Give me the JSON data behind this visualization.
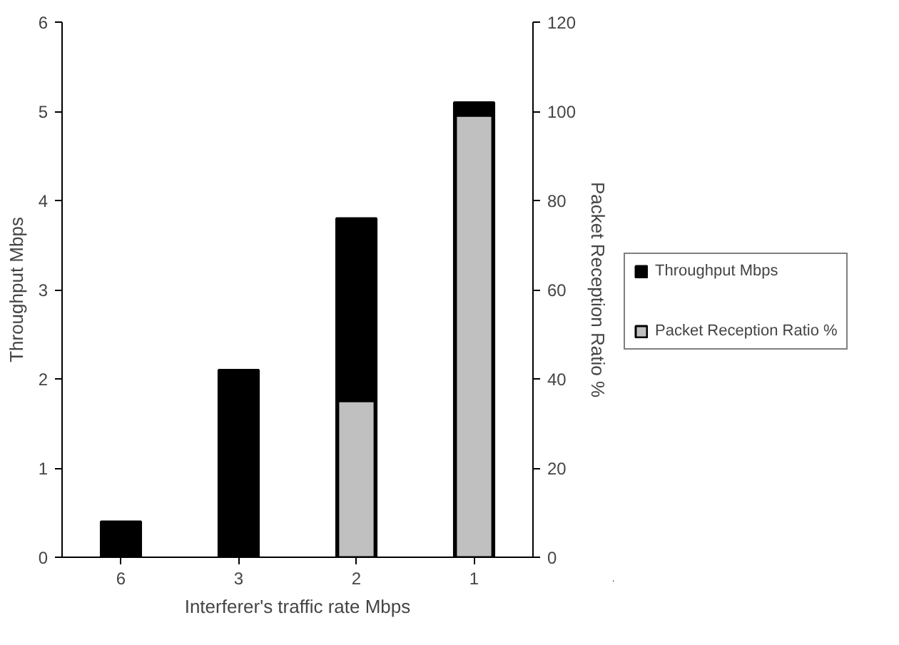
{
  "chart_data": {
    "type": "bar",
    "categories": [
      "6",
      "3",
      "2",
      "1"
    ],
    "xlabel": "Interferer's traffic rate Mbps",
    "ylabel": "Throughput Mbps",
    "y2label": "Packet Reception Ratio %",
    "ylim": [
      0,
      6
    ],
    "yticks": [
      0,
      1,
      2,
      3,
      4,
      5,
      6
    ],
    "y2lim": [
      0,
      120
    ],
    "y2ticks": [
      0,
      20,
      40,
      60,
      80,
      100,
      120
    ],
    "grid": false,
    "legend": "right",
    "series": [
      {
        "name": "Throughput Mbps",
        "color": "#000000",
        "values": [
          0.4,
          2.1,
          3.8,
          5.1
        ]
      },
      {
        "name": "Packet Reception Ratio %",
        "color": "#c0c0c0",
        "axis": "y2",
        "values": [
          null,
          null,
          35,
          99
        ]
      }
    ]
  }
}
